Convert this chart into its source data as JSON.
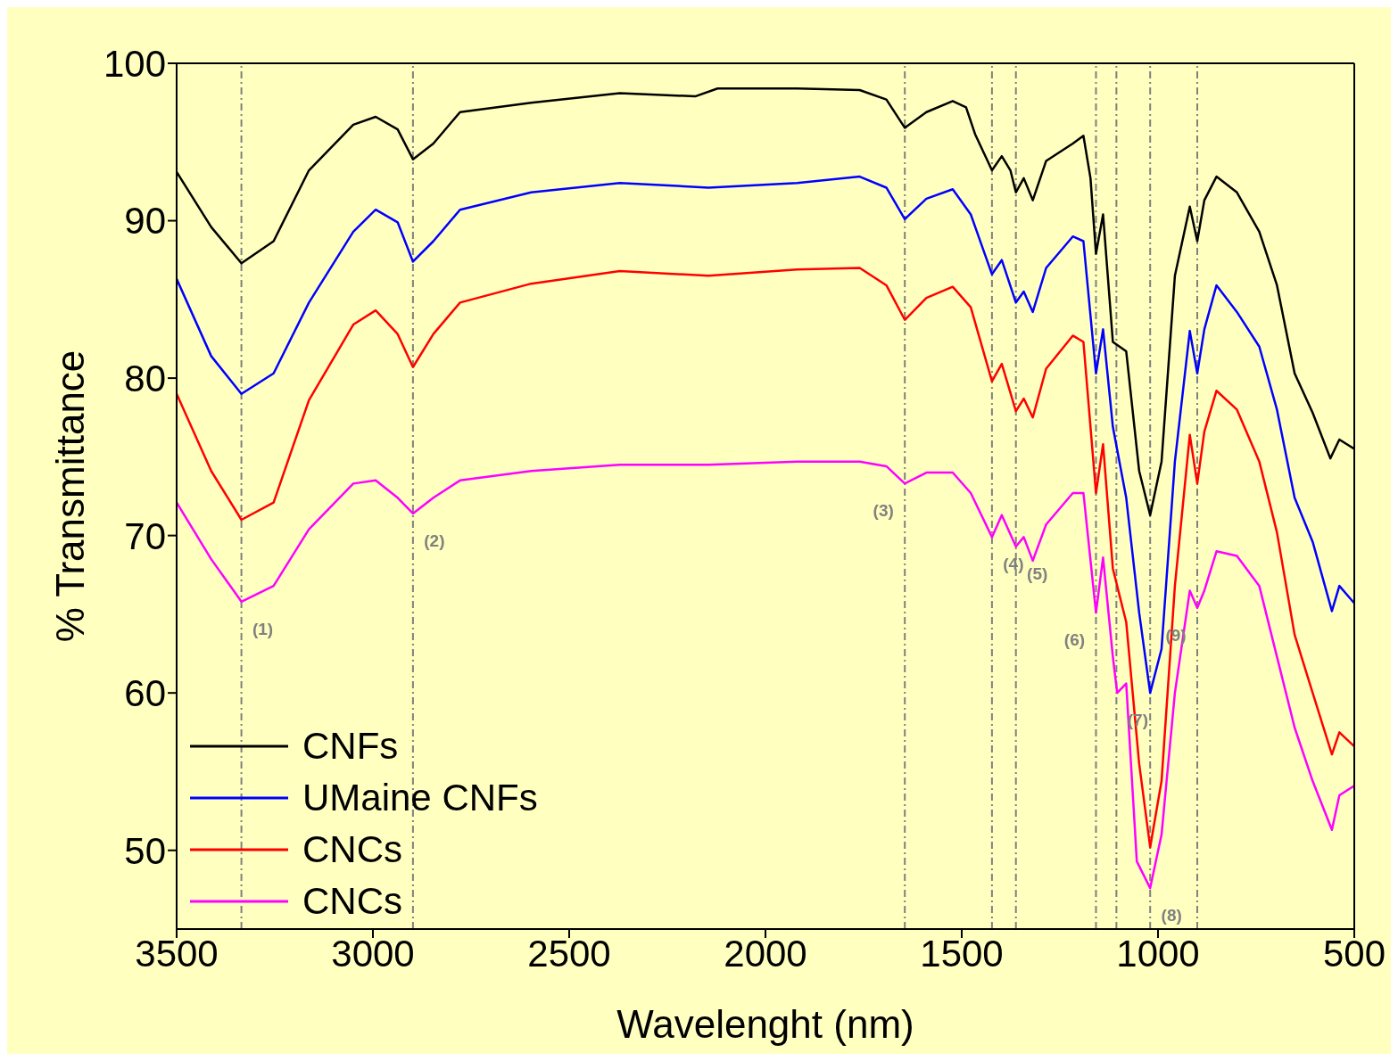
{
  "chart_data": {
    "type": "line",
    "xlabel": "Wavelenght (nm)",
    "ylabel": "% Transmittance",
    "xlim": [
      3500,
      500
    ],
    "xticks": [
      3500,
      3000,
      2500,
      2000,
      1500,
      1000,
      500
    ],
    "ylim": [
      45,
      100
    ],
    "yticks": [
      50,
      60,
      70,
      80,
      90,
      100
    ],
    "legend": "bottom left",
    "line_style": "solid",
    "series": [
      {
        "name": "CNFs",
        "color": "#000000",
        "x": [
          3500,
          3412,
          3335,
          3253,
          3163,
          3050,
          2993,
          2937,
          2898,
          2846,
          2778,
          2597,
          2371,
          2179,
          2122,
          1919,
          1760,
          1692,
          1645,
          1590,
          1523,
          1489,
          1466,
          1423,
          1398,
          1376,
          1362,
          1342,
          1319,
          1285,
          1217,
          1190,
          1172,
          1158,
          1140,
          1115,
          1081,
          1048,
          1020,
          991,
          957,
          919,
          900,
          882,
          851,
          799,
          742,
          697,
          652,
          606,
          561,
          538,
          500
        ],
        "values": [
          93.1,
          89.6,
          87.3,
          88.7,
          93.2,
          96.1,
          96.6,
          95.8,
          93.9,
          94.9,
          96.9,
          97.5,
          98.1,
          97.9,
          98.4,
          98.4,
          98.3,
          97.7,
          95.9,
          96.9,
          97.6,
          97.2,
          95.5,
          93.2,
          94.1,
          93.2,
          91.8,
          92.7,
          91.3,
          93.8,
          94.9,
          95.4,
          92.7,
          87.9,
          90.4,
          82.3,
          81.7,
          74.1,
          71.3,
          74.7,
          86.5,
          90.9,
          88.7,
          91.3,
          92.8,
          91.8,
          89.3,
          85.9,
          80.3,
          77.8,
          74.9,
          76.1,
          75.5
        ]
      },
      {
        "name": "UMaine CNFs",
        "color": "#0000ff",
        "x": [
          3500,
          3412,
          3335,
          3253,
          3163,
          3050,
          2993,
          2937,
          2898,
          2846,
          2778,
          2597,
          2371,
          2145,
          1919,
          1760,
          1692,
          1645,
          1590,
          1523,
          1477,
          1423,
          1398,
          1362,
          1342,
          1319,
          1285,
          1217,
          1190,
          1158,
          1140,
          1115,
          1081,
          1048,
          1020,
          991,
          957,
          919,
          900,
          882,
          851,
          799,
          742,
          697,
          652,
          606,
          557,
          538,
          500
        ],
        "values": [
          86.3,
          81.4,
          79.0,
          80.3,
          84.8,
          89.3,
          90.7,
          89.9,
          87.4,
          88.7,
          90.7,
          91.8,
          92.4,
          92.1,
          92.4,
          92.8,
          92.1,
          90.1,
          91.4,
          92.0,
          90.4,
          86.6,
          87.5,
          84.8,
          85.5,
          84.2,
          87.0,
          89.0,
          88.7,
          80.3,
          83.1,
          76.9,
          72.4,
          65.1,
          60.0,
          62.8,
          74.7,
          83.0,
          80.3,
          83.1,
          85.9,
          84.2,
          82.0,
          78.0,
          72.4,
          69.6,
          65.2,
          66.8,
          65.7
        ]
      },
      {
        "name": "CNCs",
        "color": "#ff0000",
        "x": [
          3500,
          3412,
          3335,
          3253,
          3163,
          3050,
          2993,
          2937,
          2898,
          2846,
          2778,
          2597,
          2371,
          2145,
          1919,
          1760,
          1692,
          1645,
          1590,
          1523,
          1477,
          1423,
          1398,
          1362,
          1342,
          1319,
          1285,
          1217,
          1190,
          1158,
          1140,
          1115,
          1081,
          1048,
          1020,
          991,
          957,
          919,
          900,
          882,
          851,
          799,
          742,
          697,
          652,
          606,
          557,
          538,
          500
        ],
        "values": [
          79.0,
          74.1,
          71.0,
          72.1,
          78.6,
          83.4,
          84.3,
          82.8,
          80.7,
          82.8,
          84.8,
          86.0,
          86.8,
          86.5,
          86.9,
          87.0,
          85.9,
          83.7,
          85.1,
          85.8,
          84.5,
          79.8,
          80.9,
          77.9,
          78.7,
          77.5,
          80.6,
          82.7,
          82.3,
          72.7,
          75.8,
          67.9,
          64.5,
          55.5,
          50.2,
          54.4,
          66.8,
          76.4,
          73.3,
          76.6,
          79.2,
          78.0,
          74.7,
          70.2,
          63.7,
          60.0,
          56.1,
          57.5,
          56.6
        ]
      },
      {
        "name": "CNCs",
        "color": "#ff00ff",
        "x": [
          3500,
          3412,
          3335,
          3253,
          3163,
          3050,
          2993,
          2937,
          2898,
          2846,
          2778,
          2597,
          2371,
          2145,
          1919,
          1760,
          1692,
          1645,
          1590,
          1523,
          1477,
          1423,
          1398,
          1362,
          1342,
          1319,
          1285,
          1217,
          1190,
          1158,
          1140,
          1115,
          1104,
          1081,
          1054,
          1020,
          991,
          957,
          919,
          900,
          882,
          851,
          799,
          742,
          697,
          652,
          606,
          557,
          538,
          500
        ],
        "values": [
          72.1,
          68.5,
          65.8,
          66.8,
          70.4,
          73.3,
          73.5,
          72.4,
          71.4,
          72.4,
          73.5,
          74.1,
          74.5,
          74.5,
          74.7,
          74.7,
          74.4,
          73.3,
          74.0,
          74.0,
          72.7,
          69.9,
          71.3,
          69.3,
          69.9,
          68.4,
          70.7,
          72.7,
          72.7,
          65.1,
          68.6,
          62.3,
          60.0,
          60.6,
          49.3,
          47.6,
          51.0,
          60.0,
          66.5,
          65.4,
          66.5,
          69.0,
          68.7,
          66.8,
          62.3,
          57.8,
          54.4,
          51.3,
          53.5,
          54.1
        ]
      }
    ],
    "ref_lines": [
      {
        "axis": "x",
        "value": 3335,
        "color": "#808080",
        "line_style": "dashed"
      },
      {
        "axis": "x",
        "value": 2898,
        "color": "#808080",
        "line_style": "dashed"
      },
      {
        "axis": "x",
        "value": 1645,
        "color": "#808080",
        "line_style": "dashed"
      },
      {
        "axis": "x",
        "value": 1423,
        "color": "#808080",
        "line_style": "dashed"
      },
      {
        "axis": "x",
        "value": 1362,
        "color": "#808080",
        "line_style": "dashed"
      },
      {
        "axis": "x",
        "value": 1158,
        "color": "#808080",
        "line_style": "dashed"
      },
      {
        "axis": "x",
        "value": 1106,
        "color": "#808080",
        "line_style": "dashed"
      },
      {
        "axis": "x",
        "value": 1020,
        "color": "#808080",
        "line_style": "dashed"
      },
      {
        "axis": "x",
        "value": 900,
        "color": "#808080",
        "line_style": "dashed"
      }
    ],
    "annotations": [
      "(1)",
      "(2)",
      "(3)",
      "(4)",
      "(5)",
      "(6)",
      "(7)",
      "(8)",
      "(9)"
    ]
  }
}
